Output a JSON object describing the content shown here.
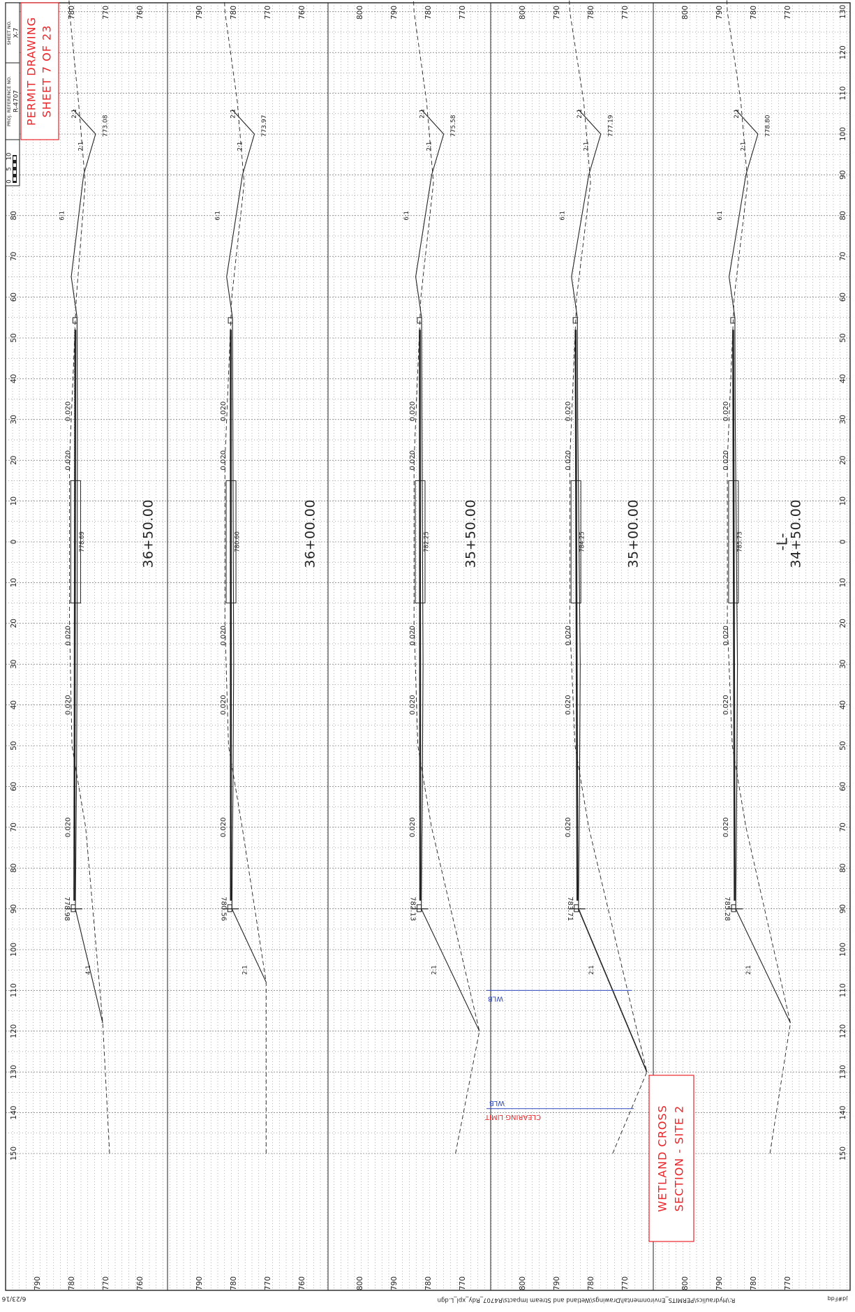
{
  "title_block": {
    "scale_ticks": [
      "0",
      "5",
      "10"
    ],
    "proj_ref_label": "PROJ. REFERENCE NO.",
    "proj_ref_value": "R-4707",
    "sheet_no_label": "SHEET NO.",
    "sheet_no_value": "X-7",
    "permit_line1": "PERMIT DRAWING",
    "permit_line2": "SHEET 7 OF 23"
  },
  "site_label": {
    "line1": "WETLAND CROSS",
    "line2": "SECTION - SITE 2"
  },
  "offset_ticks": [
    "150",
    "140",
    "130",
    "120",
    "110",
    "100",
    "90",
    "80",
    "70",
    "60",
    "50",
    "40",
    "30",
    "20",
    "10",
    "0",
    "10",
    "20",
    "30",
    "40",
    "50",
    "60",
    "70",
    "80",
    "90",
    "100",
    "110",
    "120",
    "130",
    "140",
    "150"
  ],
  "sections": [
    {
      "station": "36+50.00",
      "elev_ticks": [
        "790",
        "780",
        "770",
        "760"
      ],
      "left_elev": "778.69",
      "ditch_elev": "773.08",
      "right_elev": "778.98",
      "slopes": [
        "0.020",
        "0.020",
        "0.020",
        "0.020",
        "0.020"
      ],
      "slope_ratios": [
        "6:1",
        "2:1",
        "2:1",
        "4:1"
      ]
    },
    {
      "station": "36+00.00",
      "elev_ticks": [
        "790",
        "780",
        "770",
        "760"
      ],
      "left_elev": "780.60",
      "ditch_elev": "773.97",
      "right_elev": "780.56",
      "slopes": [
        "0.020",
        "0.020",
        "0.020",
        "0.020",
        "0.020"
      ],
      "slope_ratios": [
        "6:1",
        "2:1",
        "2:1",
        "2:1"
      ]
    },
    {
      "station": "35+50.00",
      "elev_ticks": [
        "800",
        "790",
        "780",
        "770"
      ],
      "left_elev": "782.25",
      "ditch_elev": "775.58",
      "right_elev": "782.13",
      "slopes": [
        "0.020",
        "0.020",
        "0.020",
        "0.020",
        "0.020"
      ],
      "slope_ratios": [
        "6:1",
        "2:1",
        "2:1",
        "2:1"
      ]
    },
    {
      "station": "35+00.00",
      "elev_ticks": [
        "800",
        "790",
        "780",
        "770"
      ],
      "left_elev": "784.25",
      "ditch_elev": "777.19",
      "right_elev": "783.71",
      "slopes": [
        "0.020",
        "0.020",
        "0.020",
        "0.020",
        "0.020"
      ],
      "slope_ratios": [
        "6:1",
        "2:1",
        "2:1",
        "2:1"
      ]
    },
    {
      "station": "34+50.00",
      "elev_ticks": [
        "800",
        "790",
        "780",
        "770"
      ],
      "left_elev": "785.73",
      "ditch_elev": "778.80",
      "right_elev": "785.28",
      "slopes": [
        "0.020",
        "0.020",
        "0.020",
        "0.020",
        "0.020"
      ],
      "slope_ratios": [
        "6:1",
        "2:1",
        "2:1",
        "2:1"
      ]
    }
  ],
  "annotations": {
    "wlb_1": "WLB",
    "wlb_2": "WLB",
    "clearing_limit": "CLEARING LIMIT",
    "centerline_label": "-L-"
  },
  "footer": {
    "date": "6/23/16",
    "file_path": "R:\\Hydraulics\\PERMITS_Environmental\\Drawings\\Wetland and Stream Impacts\\R4707_Rdy_xpl_L.dgn",
    "user": "jd#Fdq"
  },
  "colors": {
    "ink": "#222222",
    "grid": "#555555",
    "red": "#e8262a",
    "blue": "#2f48c0"
  }
}
